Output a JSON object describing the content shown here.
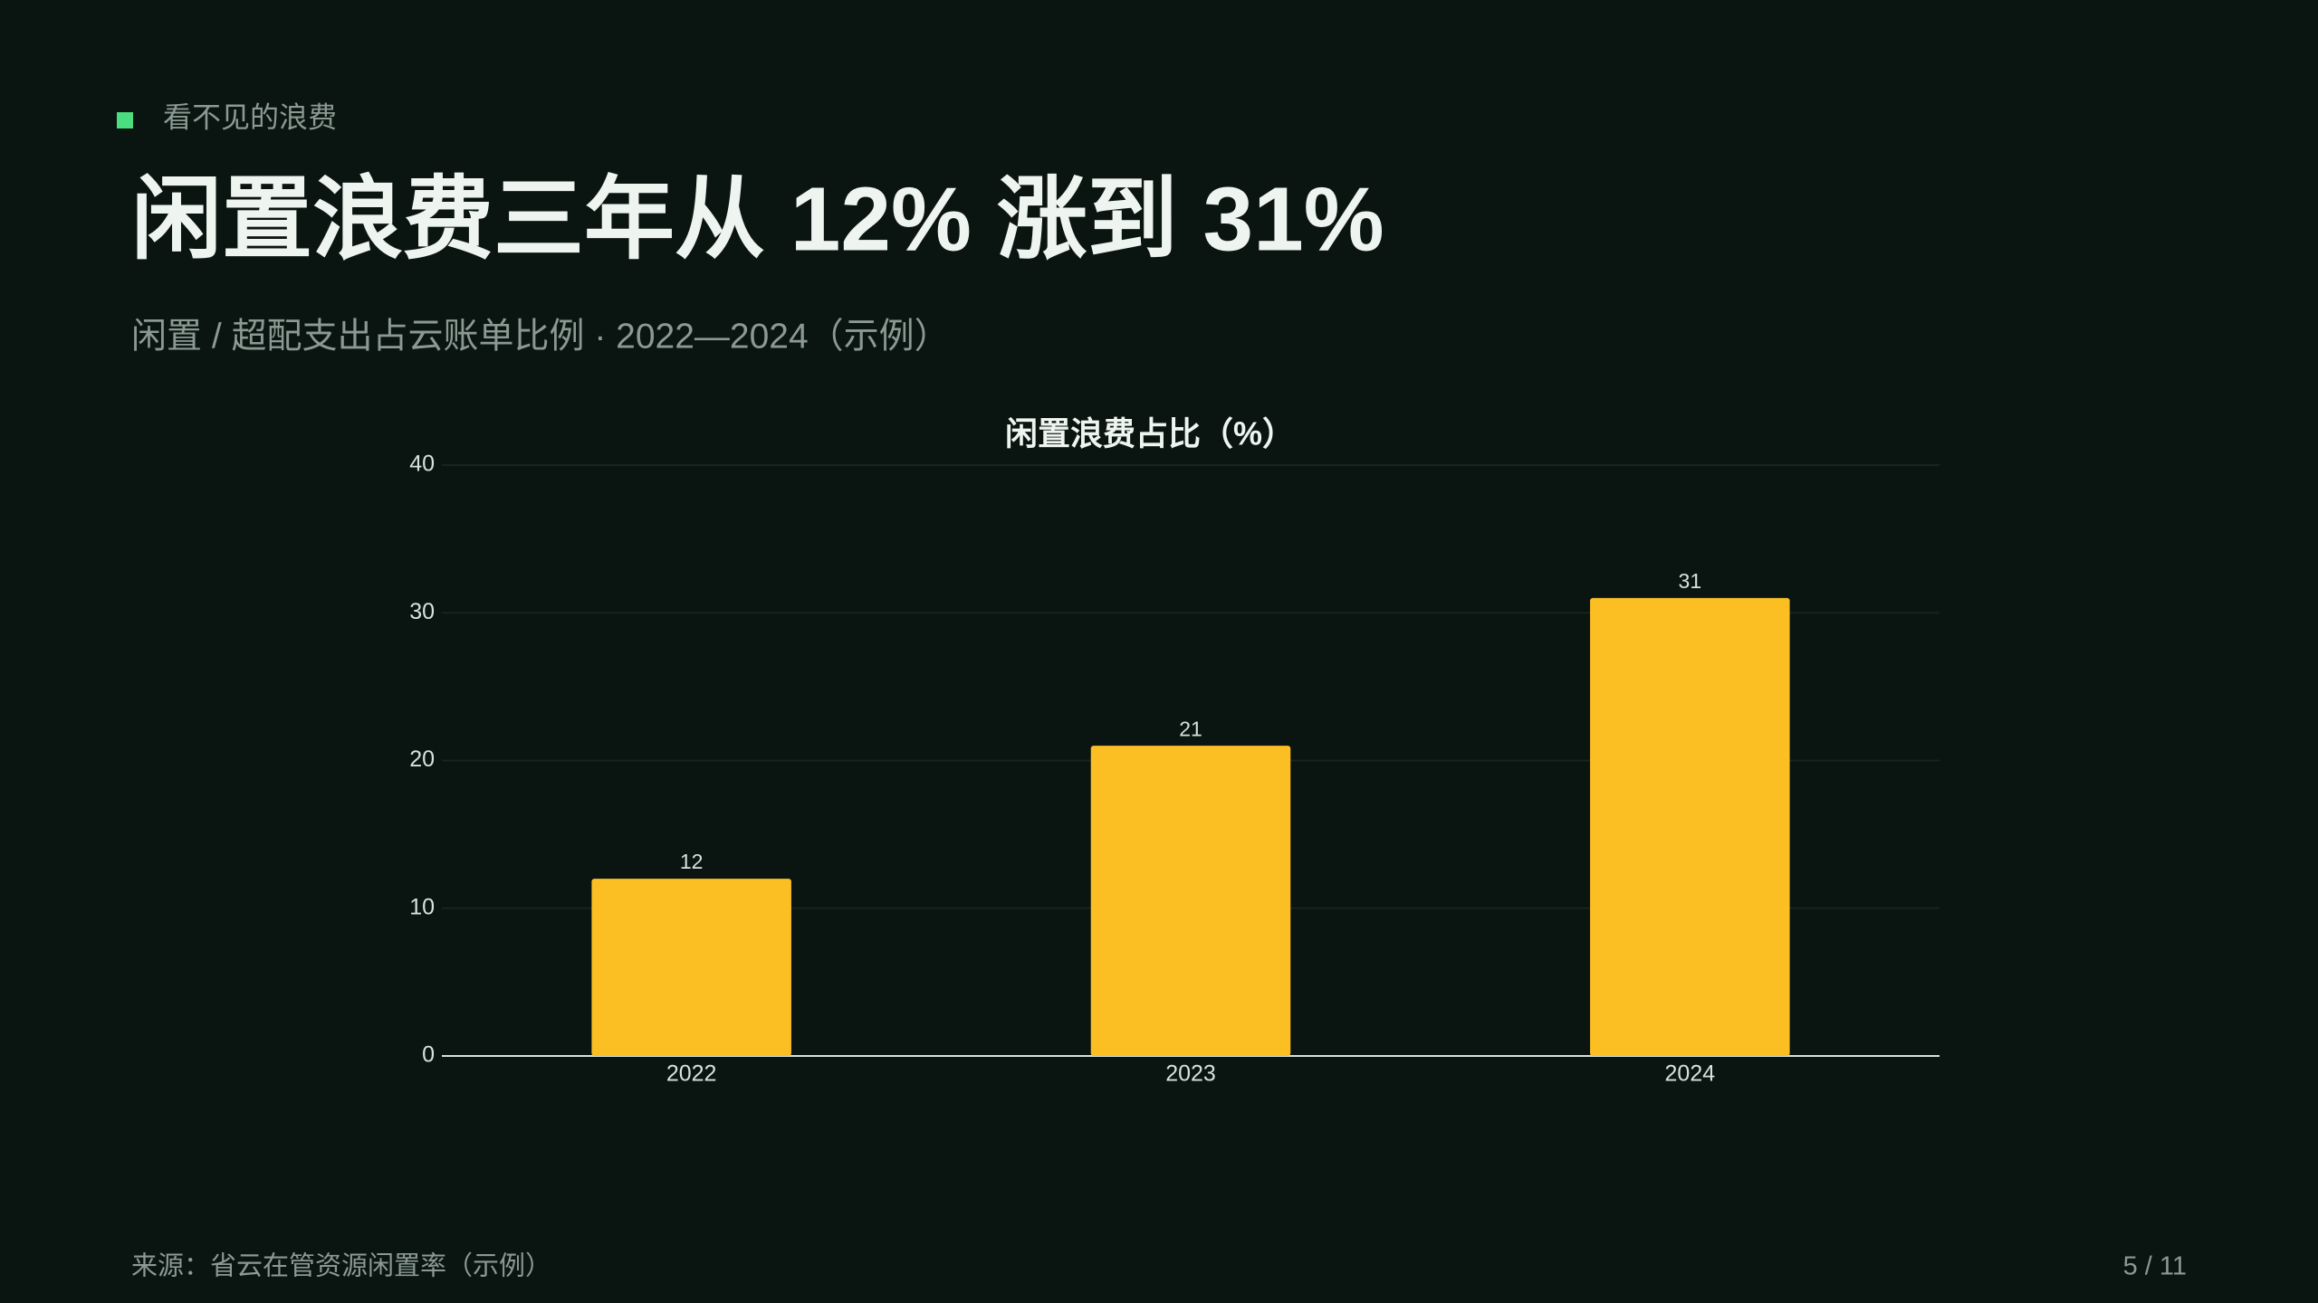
{
  "header": {
    "kicker": "看不见的浪费",
    "title": "闲置浪费三年从 12% 涨到 31%",
    "subtitle": "闲置 / 超配支出占云账单比例 · 2022—2024（示例）"
  },
  "chart_data": {
    "type": "bar",
    "title": "闲置浪费占比（%）",
    "categories": [
      "2022",
      "2023",
      "2024"
    ],
    "values": [
      12,
      21,
      31
    ],
    "color": "#fbbf24",
    "ylim": [
      0,
      40
    ],
    "yticks": [
      0,
      10,
      20,
      30,
      40
    ],
    "grid": true
  },
  "footer": {
    "source": "来源：省云在管资源闲置率（示例）",
    "page": "5 / 11"
  }
}
